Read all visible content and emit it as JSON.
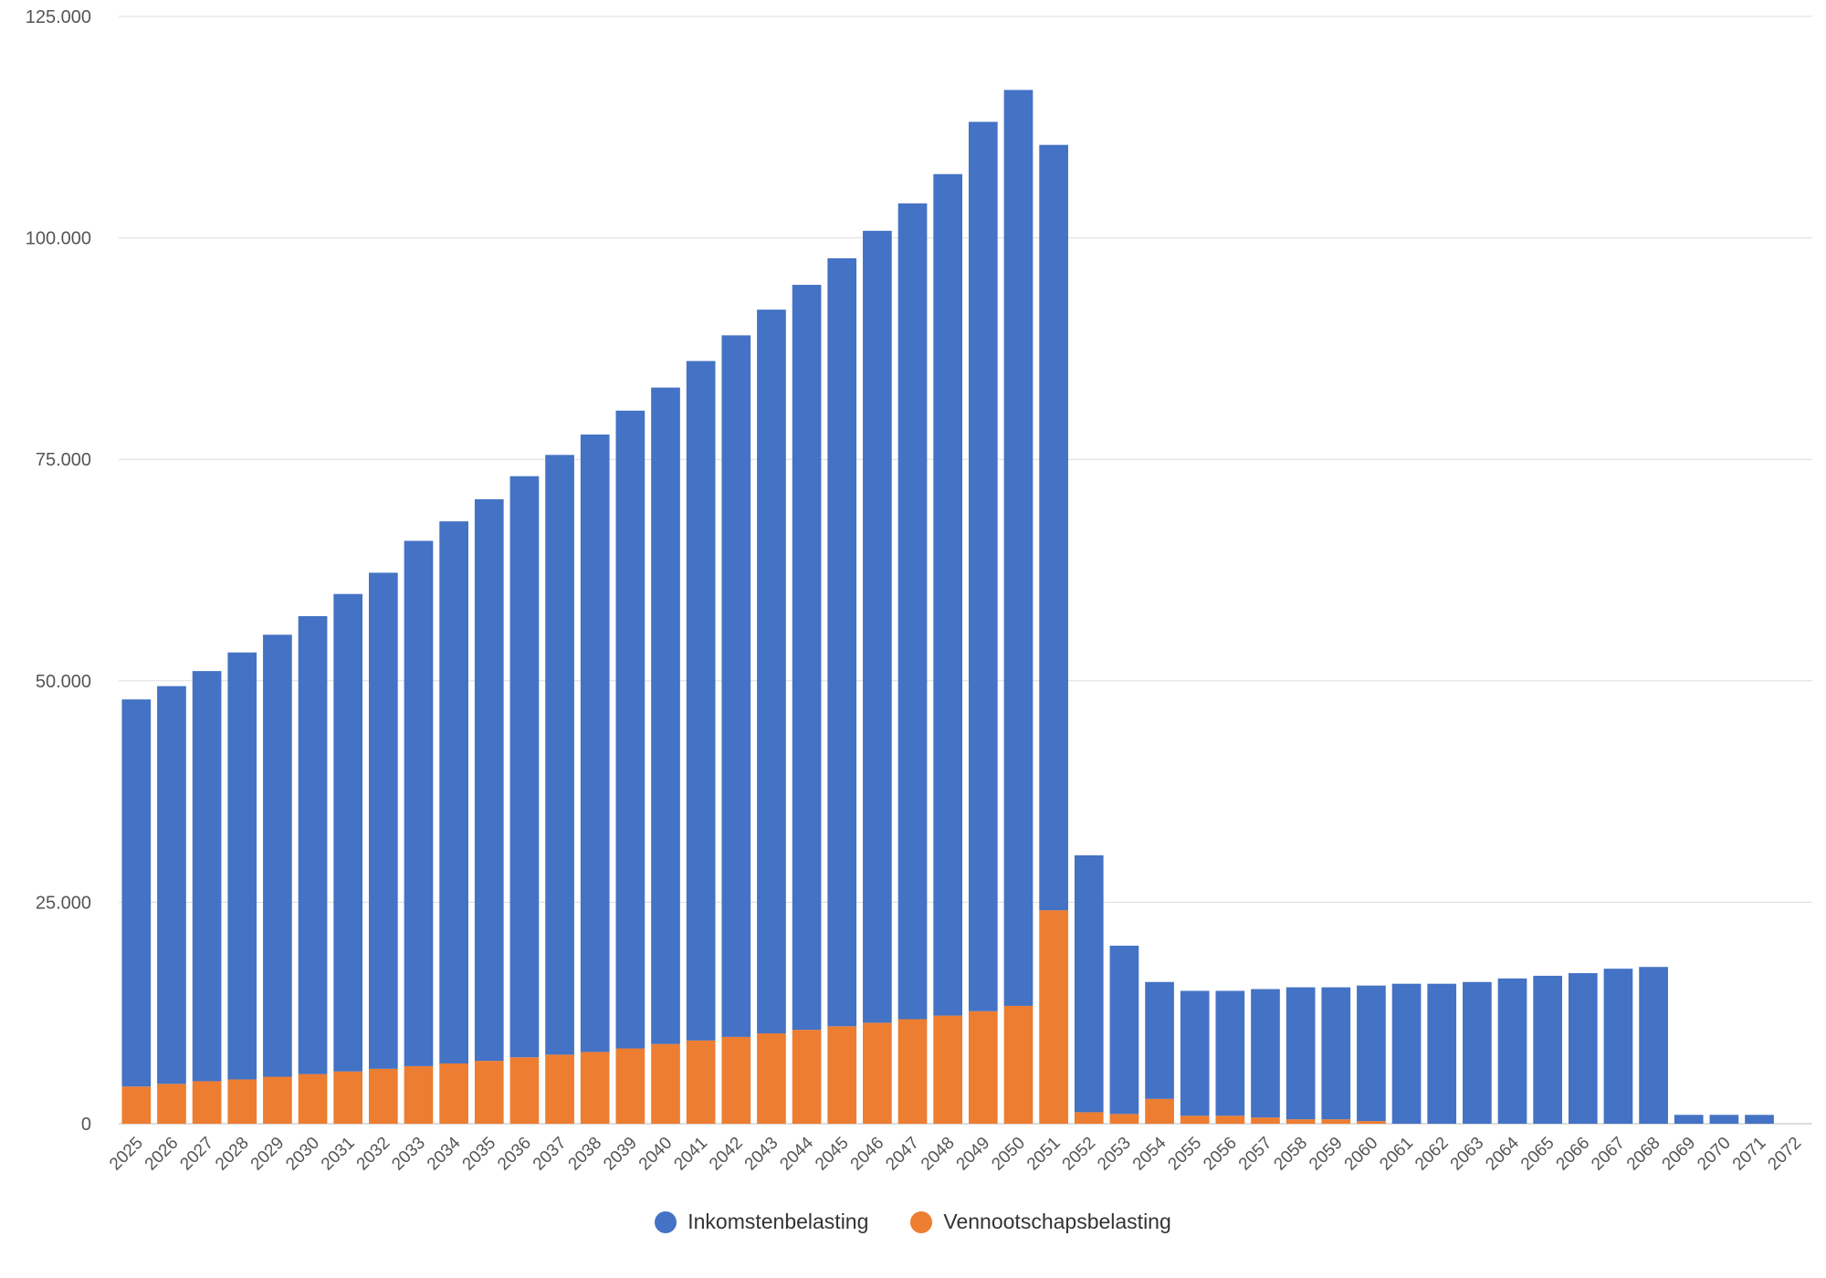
{
  "chart_data": {
    "type": "bar",
    "stacked": true,
    "categories": [
      "2025",
      "2026",
      "2027",
      "2028",
      "2029",
      "2030",
      "2031",
      "2032",
      "2033",
      "2034",
      "2035",
      "2036",
      "2037",
      "2038",
      "2039",
      "2040",
      "2041",
      "2042",
      "2043",
      "2044",
      "2045",
      "2046",
      "2047",
      "2048",
      "2049",
      "2050",
      "2051",
      "2052",
      "2053",
      "2054",
      "2055",
      "2056",
      "2057",
      "2058",
      "2059",
      "2060",
      "2061",
      "2062",
      "2063",
      "2064",
      "2065",
      "2066",
      "2067",
      "2068",
      "2069",
      "2070",
      "2071",
      "2072"
    ],
    "series": [
      {
        "name": "Vennootschapsbelasting",
        "color": "#ED7D31",
        "values": [
          4200,
          4500,
          4800,
          5000,
          5300,
          5600,
          5900,
          6200,
          6500,
          6800,
          7100,
          7500,
          7800,
          8100,
          8500,
          9000,
          9400,
          9800,
          10200,
          10600,
          11000,
          11400,
          11800,
          12200,
          12700,
          13300,
          24100,
          1300,
          1100,
          2800,
          900,
          900,
          700,
          500,
          500,
          300,
          0,
          0,
          0,
          0,
          0,
          0,
          0,
          0,
          0,
          0,
          0,
          0
        ]
      },
      {
        "name": "Inkomstenbelasting",
        "color": "#4472C4",
        "values": [
          43700,
          44900,
          46300,
          48200,
          49900,
          51700,
          53900,
          56000,
          59300,
          61200,
          63400,
          65600,
          67700,
          69700,
          72000,
          74100,
          76700,
          79200,
          81700,
          84100,
          86700,
          89400,
          92100,
          95000,
          100400,
          103400,
          86400,
          29000,
          19000,
          13200,
          14100,
          14100,
          14500,
          14900,
          14900,
          15300,
          15800,
          15800,
          16000,
          16400,
          16700,
          17000,
          17500,
          17700,
          1000,
          1000,
          1000,
          0
        ]
      }
    ],
    "legend_order": [
      "Inkomstenbelasting",
      "Vennootschapsbelasting"
    ],
    "legend_position": "bottom",
    "ylim": [
      0,
      125000
    ],
    "yticks": [
      0,
      25000,
      50000,
      75000,
      100000,
      125000
    ],
    "ytick_labels": [
      "0",
      "25.000",
      "50.000",
      "75.000",
      "100.000",
      "125.000"
    ],
    "grid": true,
    "title": "",
    "xlabel": "",
    "ylabel": ""
  }
}
